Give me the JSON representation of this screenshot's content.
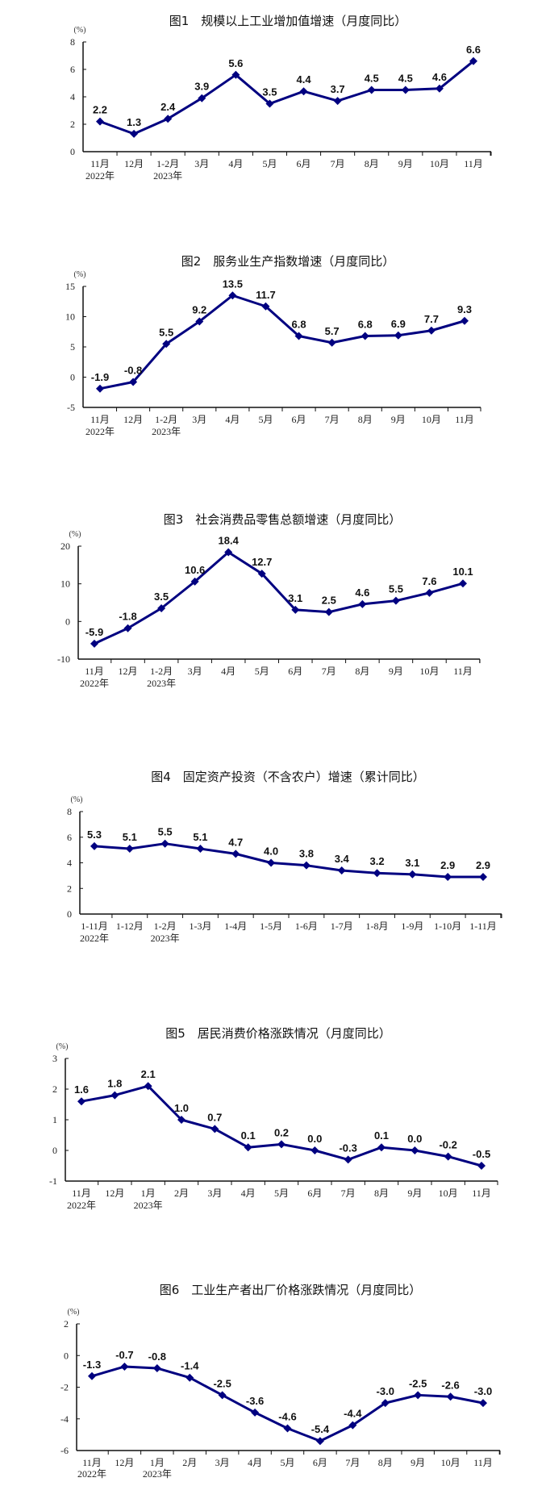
{
  "chart_data": [
    {
      "type": "line",
      "title": "图1　规模以上工业增加值增速（月度同比）",
      "unit": "(%)",
      "categories": [
        "11月",
        "12月",
        "1-2月",
        "3月",
        "4月",
        "5月",
        "6月",
        "7月",
        "8月",
        "9月",
        "10月",
        "11月"
      ],
      "category_sublabels": [
        "2022年",
        "",
        "2023年",
        "",
        "",
        "",
        "",
        "",
        "",
        "",
        "",
        ""
      ],
      "values": [
        2.2,
        1.3,
        2.4,
        3.9,
        5.6,
        3.5,
        4.4,
        3.7,
        4.5,
        4.5,
        4.6,
        6.6
      ],
      "ylim": [
        0,
        8
      ],
      "yticks": [
        0,
        2,
        4,
        6,
        8
      ],
      "color": "#000080"
    },
    {
      "type": "line",
      "title": "图2　服务业生产指数增速（月度同比）",
      "unit": "(%)",
      "categories": [
        "11月",
        "12月",
        "1-2月",
        "3月",
        "4月",
        "5月",
        "6月",
        "7月",
        "8月",
        "9月",
        "10月",
        "11月"
      ],
      "category_sublabels": [
        "2022年",
        "",
        "2023年",
        "",
        "",
        "",
        "",
        "",
        "",
        "",
        "",
        ""
      ],
      "values": [
        -1.9,
        -0.8,
        5.5,
        9.2,
        13.5,
        11.7,
        6.8,
        5.7,
        6.8,
        6.9,
        7.7,
        9.3
      ],
      "ylim": [
        -5,
        15
      ],
      "yticks": [
        -5,
        0,
        5,
        10,
        15
      ],
      "color": "#000080"
    },
    {
      "type": "line",
      "title": "图3　社会消费品零售总额增速（月度同比）",
      "unit": "(%)",
      "categories": [
        "11月",
        "12月",
        "1-2月",
        "3月",
        "4月",
        "5月",
        "6月",
        "7月",
        "8月",
        "9月",
        "10月",
        "11月"
      ],
      "category_sublabels": [
        "2022年",
        "",
        "2023年",
        "",
        "",
        "",
        "",
        "",
        "",
        "",
        "",
        ""
      ],
      "values": [
        -5.9,
        -1.8,
        3.5,
        10.6,
        18.4,
        12.7,
        3.1,
        2.5,
        4.6,
        5.5,
        7.6,
        10.1
      ],
      "ylim": [
        -10,
        20
      ],
      "yticks": [
        -10,
        0,
        10,
        20
      ],
      "color": "#000080"
    },
    {
      "type": "line",
      "title": "图4　固定资产投资（不含农户）增速（累计同比）",
      "unit": "(%)",
      "categories": [
        "1-11月",
        "1-12月",
        "1-2月",
        "1-3月",
        "1-4月",
        "1-5月",
        "1-6月",
        "1-7月",
        "1-8月",
        "1-9月",
        "1-10月",
        "1-11月"
      ],
      "category_sublabels": [
        "2022年",
        "",
        "2023年",
        "",
        "",
        "",
        "",
        "",
        "",
        "",
        "",
        ""
      ],
      "values": [
        5.3,
        5.1,
        5.5,
        5.1,
        4.7,
        4.0,
        3.8,
        3.4,
        3.2,
        3.1,
        2.9,
        2.9
      ],
      "ylim": [
        0,
        8
      ],
      "yticks": [
        0,
        2,
        4,
        6,
        8
      ],
      "color": "#000080"
    },
    {
      "type": "line",
      "title": "图5　居民消费价格涨跌情况（月度同比）",
      "unit": "(%)",
      "categories": [
        "11月",
        "12月",
        "1月",
        "2月",
        "3月",
        "4月",
        "5月",
        "6月",
        "7月",
        "8月",
        "9月",
        "10月",
        "11月"
      ],
      "category_sublabels": [
        "2022年",
        "",
        "2023年",
        "",
        "",
        "",
        "",
        "",
        "",
        "",
        "",
        "",
        ""
      ],
      "values": [
        1.6,
        1.8,
        2.1,
        1.0,
        0.7,
        0.1,
        0.2,
        0.0,
        -0.3,
        0.1,
        0.0,
        -0.2,
        -0.5
      ],
      "ylim": [
        -1,
        3
      ],
      "yticks": [
        -1,
        0,
        1,
        2,
        3
      ],
      "color": "#000080"
    },
    {
      "type": "line",
      "title": "图6　工业生产者出厂价格涨跌情况（月度同比）",
      "unit": "(%)",
      "categories": [
        "11月",
        "12月",
        "1月",
        "2月",
        "3月",
        "4月",
        "5月",
        "6月",
        "7月",
        "8月",
        "9月",
        "10月",
        "11月"
      ],
      "category_sublabels": [
        "2022年",
        "",
        "2023年",
        "",
        "",
        "",
        "",
        "",
        "",
        "",
        "",
        "",
        ""
      ],
      "values": [
        -1.3,
        -0.7,
        -0.8,
        -1.4,
        -2.5,
        -3.6,
        -4.6,
        -5.4,
        -4.4,
        -3.0,
        -2.5,
        -2.6,
        -3.0
      ],
      "ylim": [
        -6,
        2
      ],
      "yticks": [
        -6,
        -4,
        -2,
        0,
        2
      ],
      "color": "#000080"
    }
  ]
}
